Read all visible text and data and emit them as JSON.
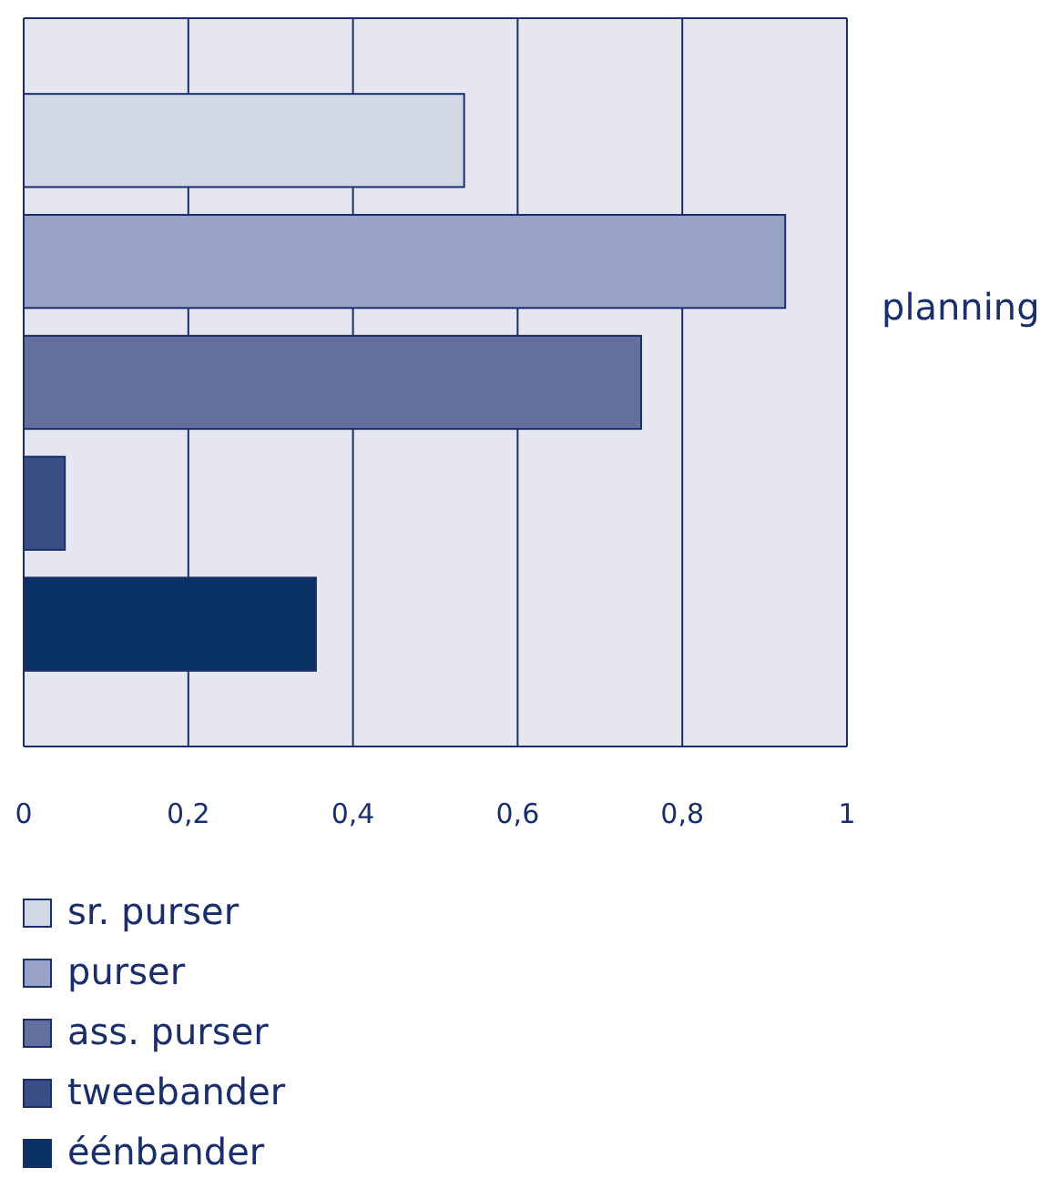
{
  "chart_data": {
    "type": "bar",
    "orientation": "horizontal",
    "categories": [
      null
    ],
    "ylabel": "planning",
    "series": [
      {
        "name": "éénbander",
        "color": "#0a3166",
        "values": [
          0.355
        ]
      },
      {
        "name": "tweebander",
        "color": "#3a4e85",
        "values": [
          0.05
        ]
      },
      {
        "name": "ass. purser",
        "color": "#63709f",
        "values": [
          0.75
        ]
      },
      {
        "name": "purser",
        "color": "#97a2c4",
        "values": [
          0.925
        ]
      },
      {
        "name": "sr. purser",
        "color": "#d3d8e6",
        "values": [
          0.535
        ]
      }
    ],
    "xlim": [
      0,
      1
    ],
    "xticks": [
      0,
      {
        "value": 0.2,
        "label": "0,2"
      },
      {
        "value": 0.4,
        "label": "0,4"
      },
      {
        "value": 0.6,
        "label": "0,6"
      },
      {
        "value": 0.8,
        "label": "0,8"
      },
      1
    ],
    "grid": "x",
    "legend": "bottom left"
  }
}
